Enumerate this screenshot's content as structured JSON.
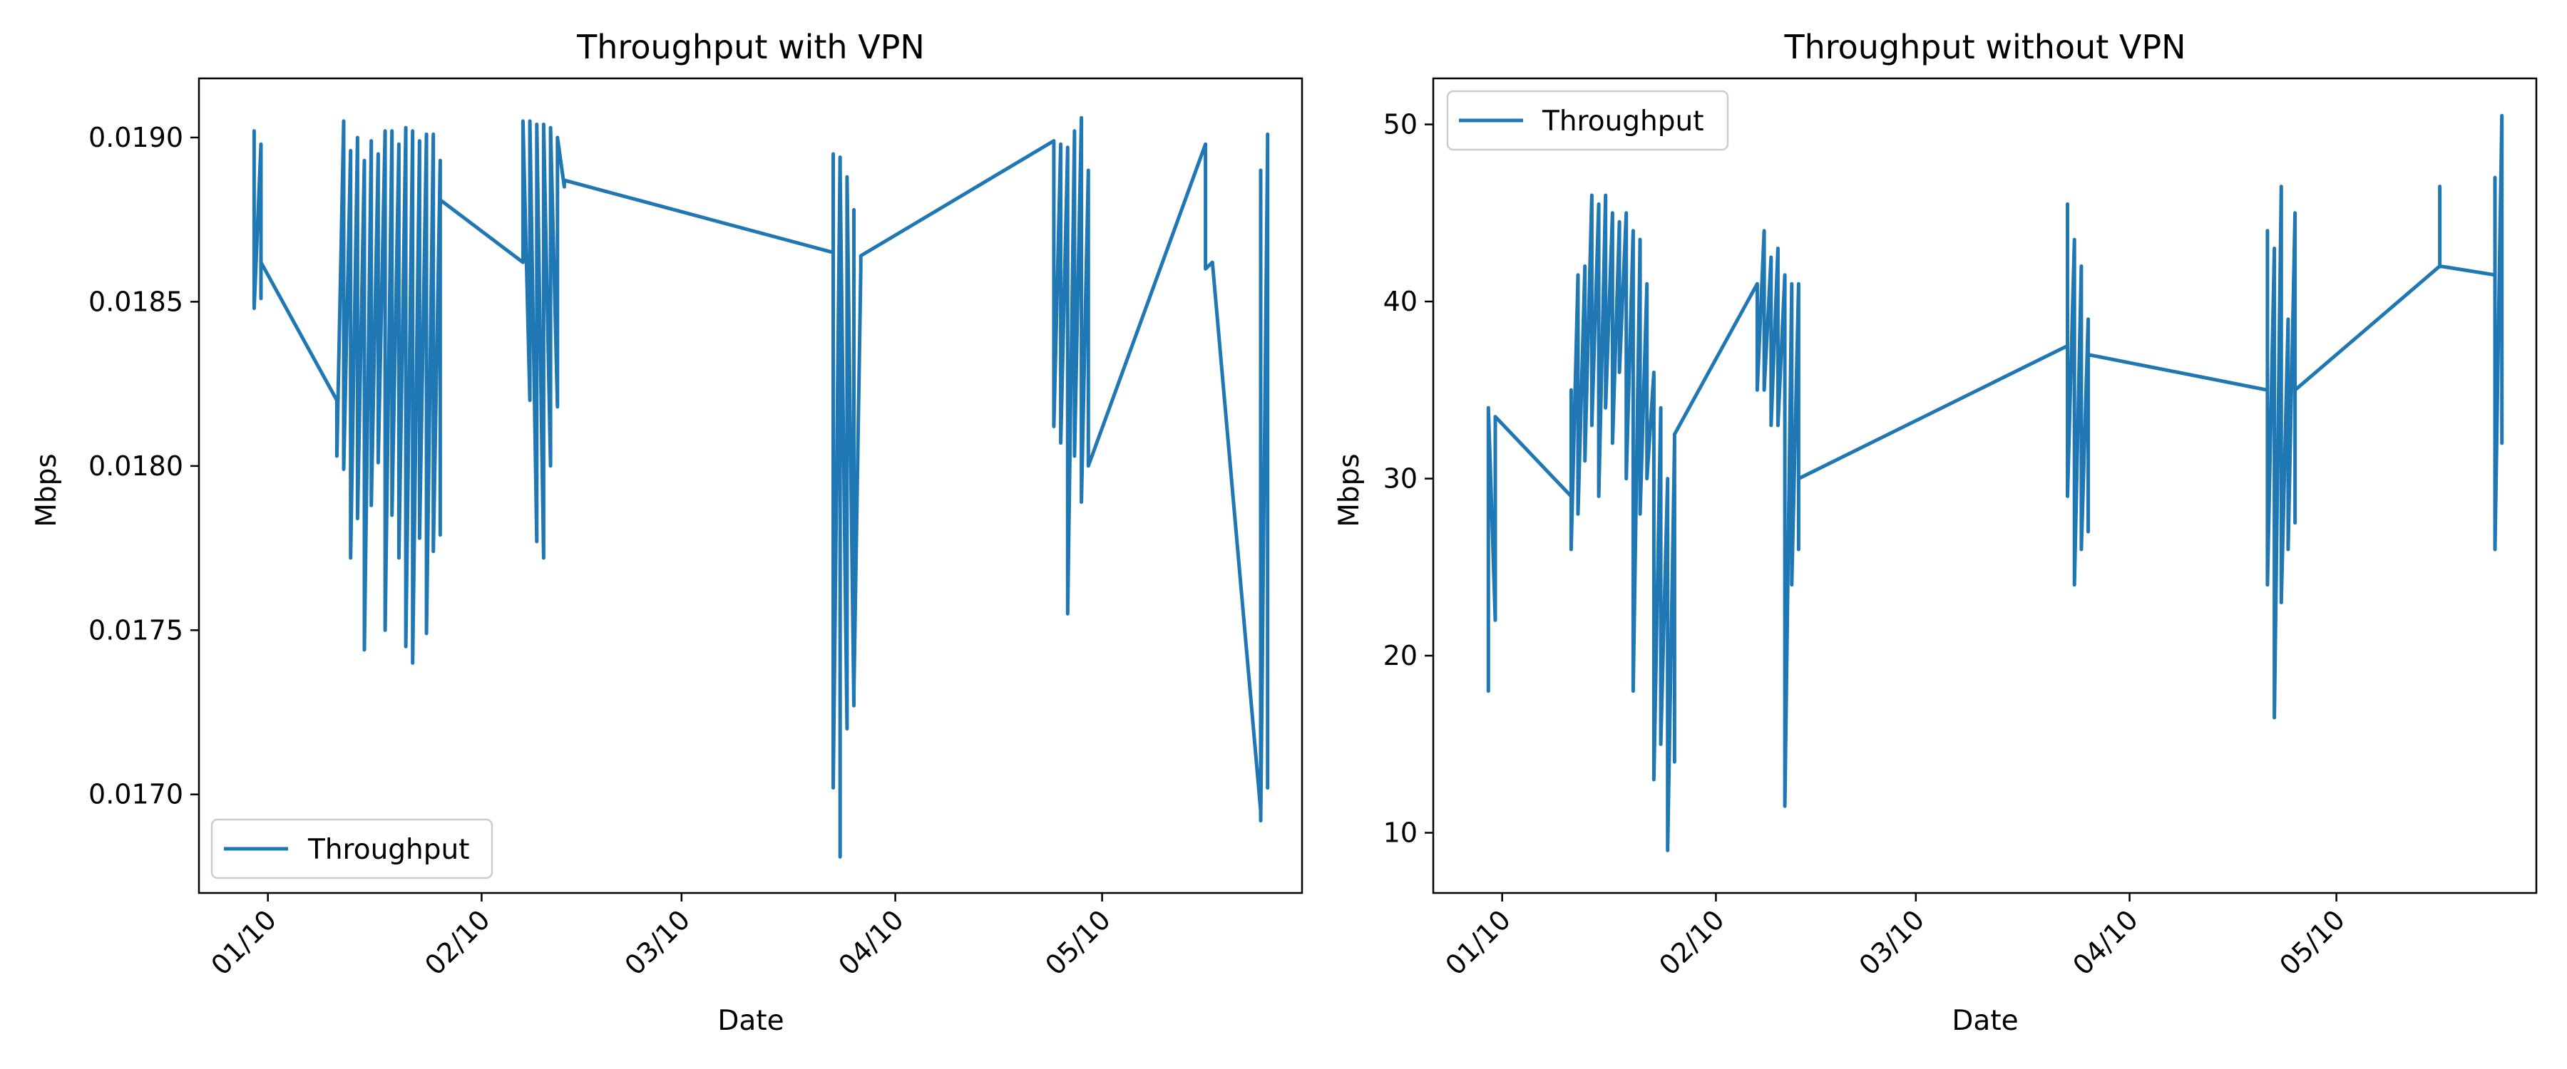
{
  "chart_data": [
    {
      "type": "line",
      "title": "Throughput with VPN",
      "xlabel": "Date",
      "ylabel": "Mbps",
      "x_tick_labels": [
        "01/10",
        "02/10",
        "03/10",
        "04/10",
        "05/10"
      ],
      "x_tick_dates": [
        "2024-01-10",
        "2024-02-10",
        "2024-03-10",
        "2024-04-10",
        "2024-05-10"
      ],
      "xlim": [
        "2023-12-31",
        "2024-06-08"
      ],
      "y_ticks": [
        0.017,
        0.0175,
        0.018,
        0.0185,
        0.019
      ],
      "y_tick_labels": [
        "0.0170",
        "0.0175",
        "0.0180",
        "0.0185",
        "0.0190"
      ],
      "ylim": [
        0.0167,
        0.01918
      ],
      "grid": false,
      "legend": {
        "placement": "lower-left",
        "entries": [
          "Throughput"
        ]
      },
      "series": [
        {
          "name": "Throughput",
          "color": "#1f77b4",
          "points": [
            [
              "2024-01-08",
              0.0186
            ],
            [
              "2024-01-08",
              0.01902
            ],
            [
              "2024-01-08",
              0.01848
            ],
            [
              "2024-01-09",
              0.01898
            ],
            [
              "2024-01-09",
              0.01851
            ],
            [
              "2024-01-09",
              0.01862
            ],
            [
              "2024-01-20",
              0.0182
            ],
            [
              "2024-01-20",
              0.01803
            ],
            [
              "2024-01-21",
              0.01905
            ],
            [
              "2024-01-21",
              0.01799
            ],
            [
              "2024-01-22",
              0.01896
            ],
            [
              "2024-01-22",
              0.01772
            ],
            [
              "2024-01-23",
              0.019
            ],
            [
              "2024-01-23",
              0.01784
            ],
            [
              "2024-01-24",
              0.01893
            ],
            [
              "2024-01-24",
              0.01744
            ],
            [
              "2024-01-25",
              0.01899
            ],
            [
              "2024-01-25",
              0.01788
            ],
            [
              "2024-01-26",
              0.01895
            ],
            [
              "2024-01-26",
              0.01801
            ],
            [
              "2024-01-27",
              0.01902
            ],
            [
              "2024-01-27",
              0.0175
            ],
            [
              "2024-01-28",
              0.01902
            ],
            [
              "2024-01-28",
              0.01785
            ],
            [
              "2024-01-29",
              0.01898
            ],
            [
              "2024-01-29",
              0.01772
            ],
            [
              "2024-01-30",
              0.01903
            ],
            [
              "2024-01-30",
              0.01745
            ],
            [
              "2024-01-31",
              0.01902
            ],
            [
              "2024-01-31",
              0.0174
            ],
            [
              "2024-02-01",
              0.01899
            ],
            [
              "2024-02-01",
              0.01778
            ],
            [
              "2024-02-02",
              0.01901
            ],
            [
              "2024-02-02",
              0.01749
            ],
            [
              "2024-02-03",
              0.01901
            ],
            [
              "2024-02-03",
              0.01774
            ],
            [
              "2024-02-04",
              0.01893
            ],
            [
              "2024-02-04",
              0.01779
            ],
            [
              "2024-02-04",
              0.01881
            ],
            [
              "2024-02-16",
              0.01862
            ],
            [
              "2024-02-16",
              0.01905
            ],
            [
              "2024-02-17",
              0.0182
            ],
            [
              "2024-02-17",
              0.01905
            ],
            [
              "2024-02-18",
              0.01777
            ],
            [
              "2024-02-18",
              0.01904
            ],
            [
              "2024-02-19",
              0.01772
            ],
            [
              "2024-02-19",
              0.01904
            ],
            [
              "2024-02-20",
              0.018
            ],
            [
              "2024-02-20",
              0.01903
            ],
            [
              "2024-02-21",
              0.01818
            ],
            [
              "2024-02-21",
              0.019
            ],
            [
              "2024-02-22",
              0.01885
            ],
            [
              "2024-02-22",
              0.01887
            ],
            [
              "2024-04-01",
              0.01865
            ],
            [
              "2024-04-01",
              0.01895
            ],
            [
              "2024-04-01",
              0.01702
            ],
            [
              "2024-04-02",
              0.01894
            ],
            [
              "2024-04-02",
              0.01681
            ],
            [
              "2024-04-02",
              0.0189
            ],
            [
              "2024-04-03",
              0.0172
            ],
            [
              "2024-04-03",
              0.01888
            ],
            [
              "2024-04-04",
              0.01727
            ],
            [
              "2024-04-04",
              0.01878
            ],
            [
              "2024-04-04",
              0.01731
            ],
            [
              "2024-04-05",
              0.0186
            ],
            [
              "2024-04-05",
              0.01864
            ],
            [
              "2024-05-03",
              0.01899
            ],
            [
              "2024-05-03",
              0.01812
            ],
            [
              "2024-05-04",
              0.01898
            ],
            [
              "2024-05-04",
              0.01807
            ],
            [
              "2024-05-05",
              0.01897
            ],
            [
              "2024-05-05",
              0.01755
            ],
            [
              "2024-05-06",
              0.01902
            ],
            [
              "2024-05-06",
              0.01803
            ],
            [
              "2024-05-07",
              0.01906
            ],
            [
              "2024-05-07",
              0.01789
            ],
            [
              "2024-05-08",
              0.0189
            ],
            [
              "2024-05-08",
              0.018
            ],
            [
              "2024-05-25",
              0.01898
            ],
            [
              "2024-05-25",
              0.0186
            ],
            [
              "2024-05-26",
              0.01862
            ],
            [
              "2024-06-02",
              0.01695
            ],
            [
              "2024-06-02",
              0.0189
            ],
            [
              "2024-06-02",
              0.01692
            ],
            [
              "2024-06-03",
              0.01898
            ],
            [
              "2024-06-03",
              0.01702
            ],
            [
              "2024-06-03",
              0.01901
            ],
            [
              "2024-06-03",
              0.0185
            ]
          ]
        }
      ]
    },
    {
      "type": "line",
      "title": "Throughput without VPN",
      "xlabel": "Date",
      "ylabel": "Mbps",
      "x_tick_labels": [
        "01/10",
        "02/10",
        "03/10",
        "04/10",
        "05/10"
      ],
      "x_tick_dates": [
        "2024-01-10",
        "2024-02-10",
        "2024-03-10",
        "2024-04-10",
        "2024-05-10"
      ],
      "xlim": [
        "2023-12-31",
        "2024-06-08"
      ],
      "y_ticks": [
        10,
        20,
        30,
        40,
        50
      ],
      "y_tick_labels": [
        "10",
        "20",
        "30",
        "40",
        "50"
      ],
      "ylim": [
        6.6,
        52.6
      ],
      "grid": false,
      "legend": {
        "placement": "upper-left",
        "entries": [
          "Throughput"
        ]
      },
      "series": [
        {
          "name": "Throughput",
          "color": "#1f77b4",
          "points": [
            [
              "2024-01-08",
              32.0
            ],
            [
              "2024-01-08",
              18.0
            ],
            [
              "2024-01-08",
              34.0
            ],
            [
              "2024-01-09",
              22.0
            ],
            [
              "2024-01-09",
              33.5
            ],
            [
              "2024-01-20",
              29.0
            ],
            [
              "2024-01-20",
              35.0
            ],
            [
              "2024-01-20",
              26.0
            ],
            [
              "2024-01-21",
              41.5
            ],
            [
              "2024-01-21",
              28.0
            ],
            [
              "2024-01-22",
              42.0
            ],
            [
              "2024-01-22",
              31.0
            ],
            [
              "2024-01-23",
              46.0
            ],
            [
              "2024-01-23",
              33.0
            ],
            [
              "2024-01-24",
              45.5
            ],
            [
              "2024-01-24",
              29.0
            ],
            [
              "2024-01-25",
              46.0
            ],
            [
              "2024-01-25",
              34.0
            ],
            [
              "2024-01-26",
              45.0
            ],
            [
              "2024-01-26",
              32.0
            ],
            [
              "2024-01-27",
              44.5
            ],
            [
              "2024-01-27",
              36.0
            ],
            [
              "2024-01-28",
              45.0
            ],
            [
              "2024-01-28",
              30.0
            ],
            [
              "2024-01-29",
              44.0
            ],
            [
              "2024-01-29",
              18.0
            ],
            [
              "2024-01-30",
              43.5
            ],
            [
              "2024-01-30",
              28.0
            ],
            [
              "2024-01-31",
              41.0
            ],
            [
              "2024-01-31",
              30.0
            ],
            [
              "2024-02-01",
              36.0
            ],
            [
              "2024-02-01",
              13.0
            ],
            [
              "2024-02-02",
              34.0
            ],
            [
              "2024-02-02",
              15.0
            ],
            [
              "2024-02-03",
              30.0
            ],
            [
              "2024-02-03",
              9.0
            ],
            [
              "2024-02-04",
              32.0
            ],
            [
              "2024-02-04",
              14.0
            ],
            [
              "2024-02-04",
              32.5
            ],
            [
              "2024-02-16",
              41.0
            ],
            [
              "2024-02-16",
              35.0
            ],
            [
              "2024-02-17",
              44.0
            ],
            [
              "2024-02-17",
              35.0
            ],
            [
              "2024-02-18",
              42.5
            ],
            [
              "2024-02-18",
              33.0
            ],
            [
              "2024-02-19",
              43.0
            ],
            [
              "2024-02-19",
              33.0
            ],
            [
              "2024-02-20",
              41.5
            ],
            [
              "2024-02-20",
              11.5
            ],
            [
              "2024-02-21",
              41.0
            ],
            [
              "2024-02-21",
              24.0
            ],
            [
              "2024-02-22",
              41.0
            ],
            [
              "2024-02-22",
              26.0
            ],
            [
              "2024-02-22",
              30.0
            ],
            [
              "2024-04-01",
              37.5
            ],
            [
              "2024-04-01",
              45.5
            ],
            [
              "2024-04-01",
              29.0
            ],
            [
              "2024-04-02",
              43.5
            ],
            [
              "2024-04-02",
              24.0
            ],
            [
              "2024-04-03",
              42.0
            ],
            [
              "2024-04-03",
              26.0
            ],
            [
              "2024-04-04",
              39.0
            ],
            [
              "2024-04-04",
              27.0
            ],
            [
              "2024-04-04",
              37.0
            ],
            [
              "2024-04-30",
              35.0
            ],
            [
              "2024-04-30",
              44.0
            ],
            [
              "2024-04-30",
              24.0
            ],
            [
              "2024-05-01",
              43.0
            ],
            [
              "2024-05-01",
              16.5
            ],
            [
              "2024-05-02",
              46.5
            ],
            [
              "2024-05-02",
              23.0
            ],
            [
              "2024-05-03",
              39.0
            ],
            [
              "2024-05-03",
              26.0
            ],
            [
              "2024-05-04",
              45.0
            ],
            [
              "2024-05-04",
              27.5
            ],
            [
              "2024-05-04",
              35.0
            ],
            [
              "2024-05-25",
              42.0
            ],
            [
              "2024-05-25",
              46.5
            ],
            [
              "2024-05-25",
              42.0
            ],
            [
              "2024-06-02",
              41.5
            ],
            [
              "2024-06-02",
              47.0
            ],
            [
              "2024-06-02",
              26.0
            ],
            [
              "2024-06-03",
              50.5
            ],
            [
              "2024-06-03",
              32.0
            ],
            [
              "2024-06-03",
              46.5
            ],
            [
              "2024-06-03",
              33.0
            ],
            [
              "2024-06-03",
              46.0
            ]
          ]
        }
      ]
    }
  ]
}
